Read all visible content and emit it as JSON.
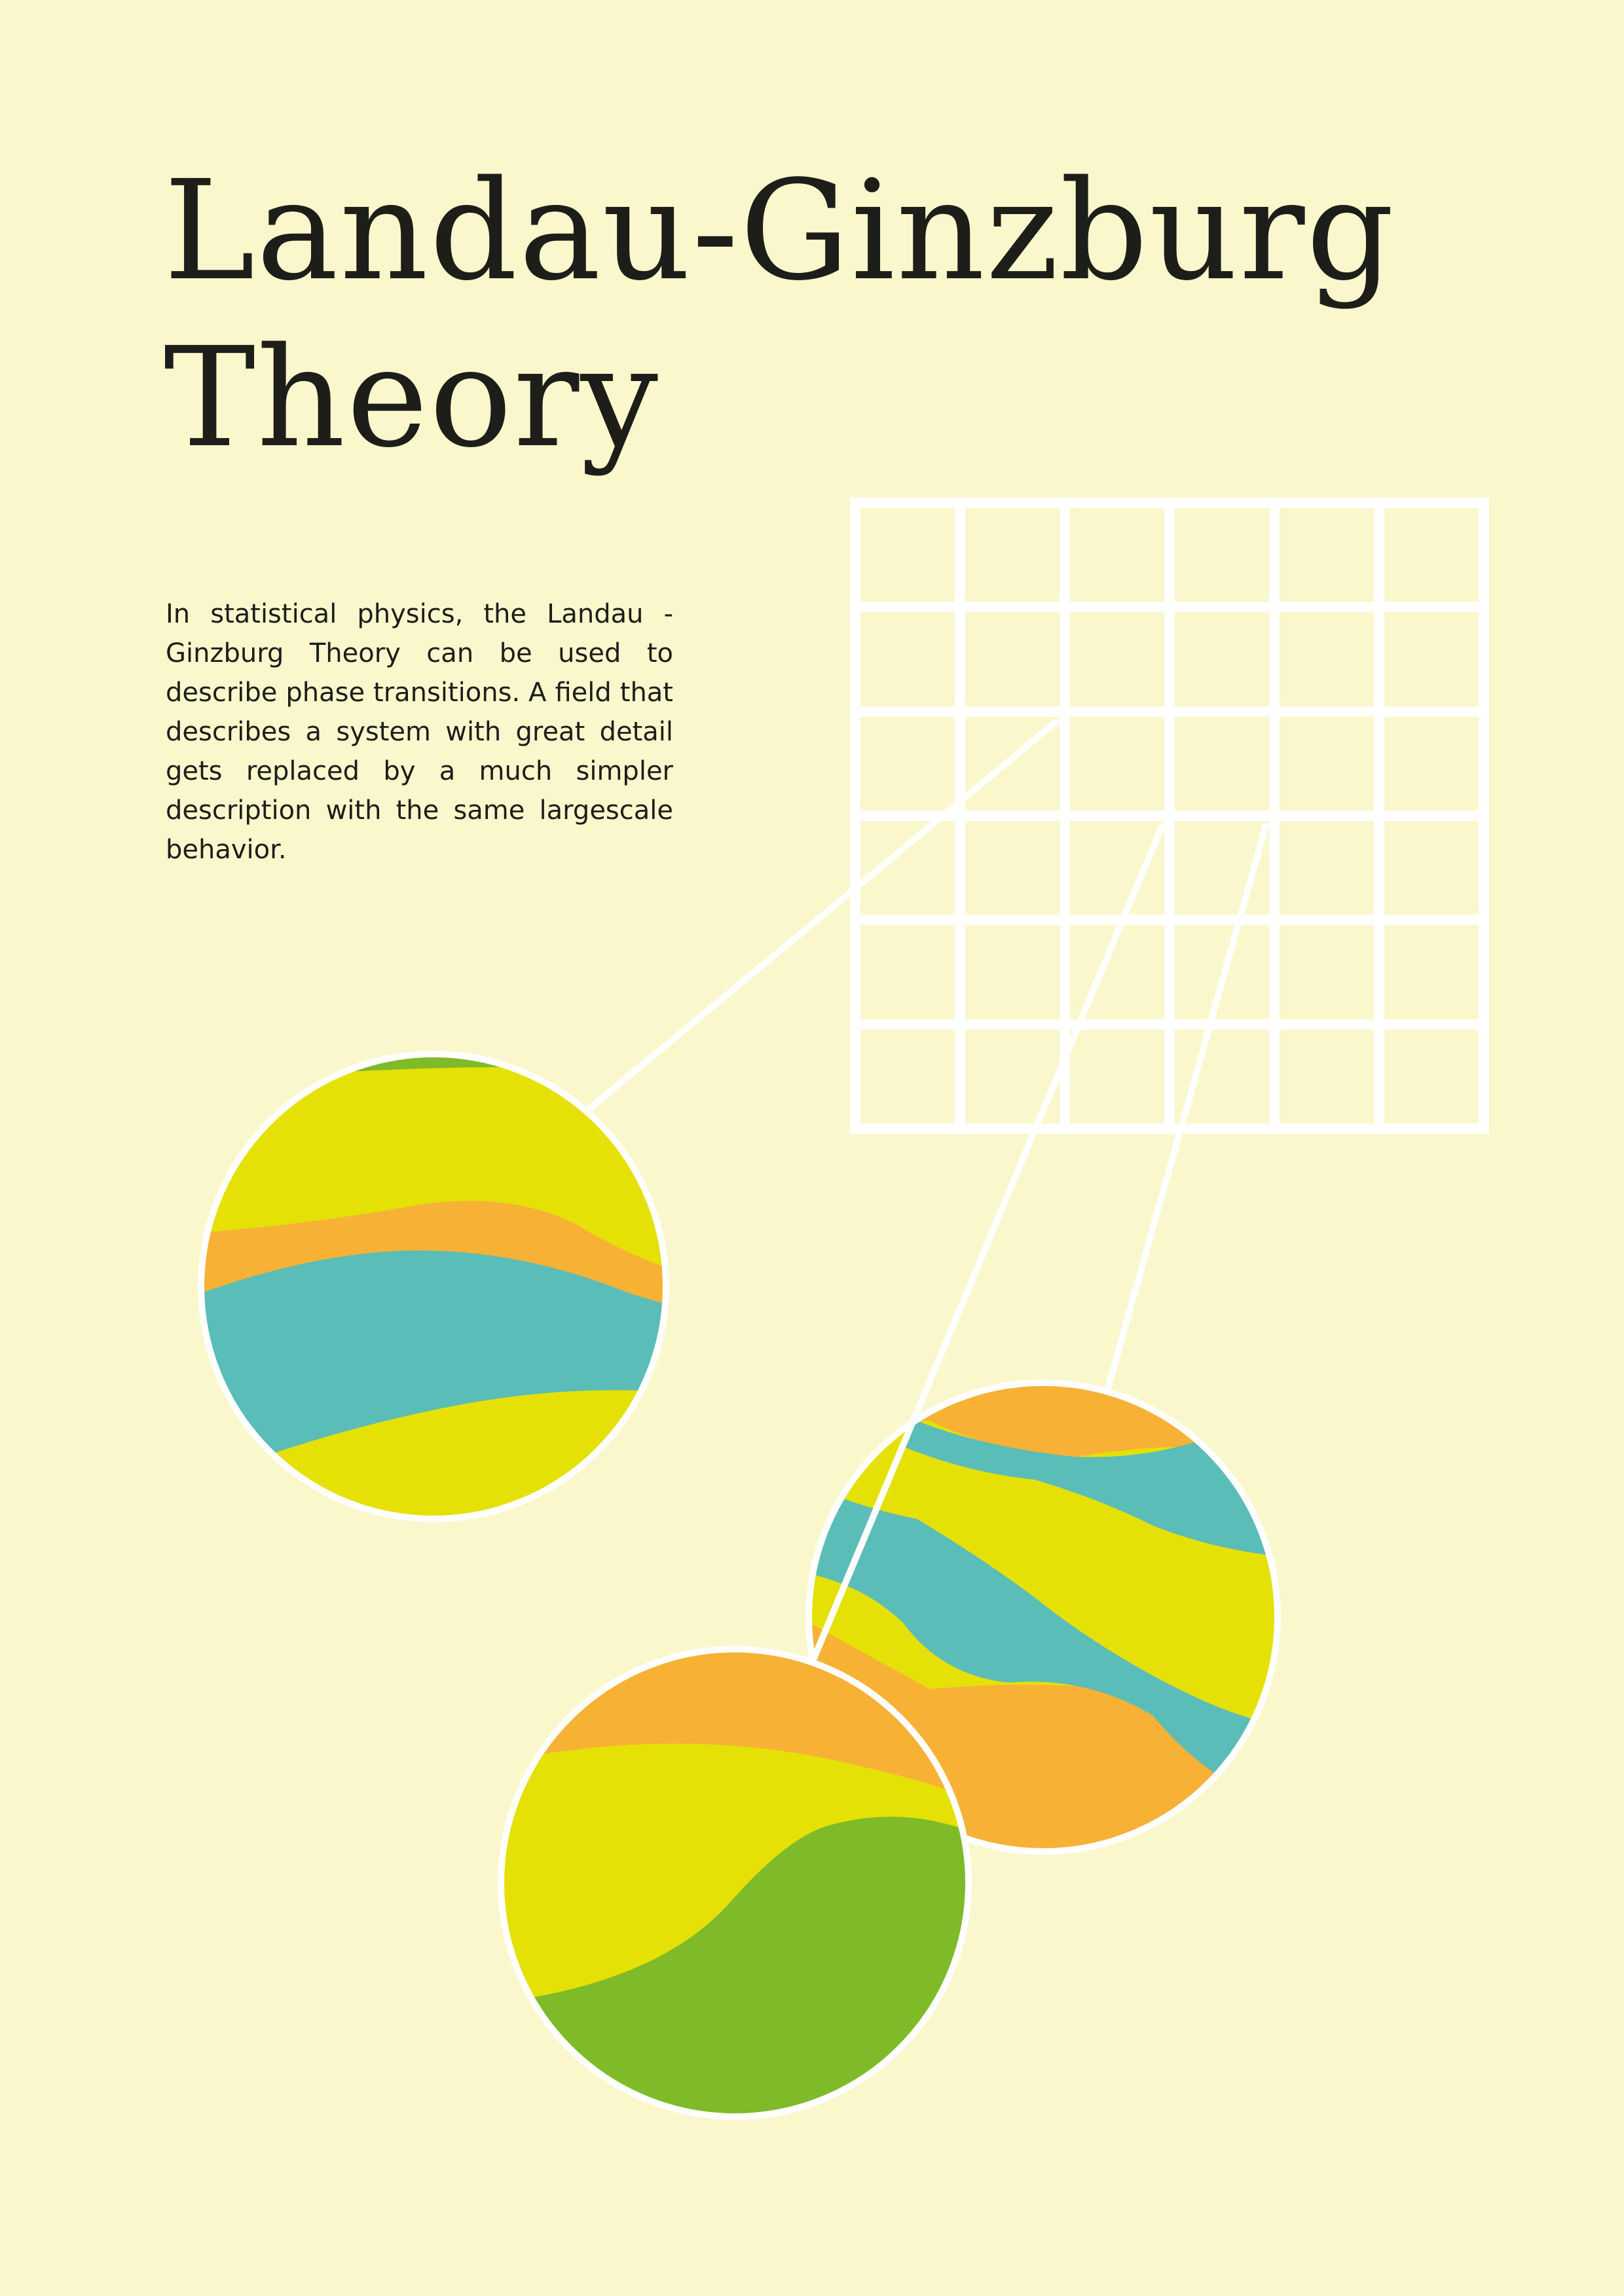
{
  "title": {
    "line1": "Landau-Ginzburg",
    "line2": "Theory"
  },
  "description": "In statistical physics, the Landau -Ginzburg Theory can be used to describe phase transitions. A field that describes a system with great detail gets replaced by a much simpler description with the same largescale behavior.",
  "colors": {
    "background": "#faf7cd",
    "text": "#1d1d19",
    "line": "#ffffff",
    "yellow": "#e5e107",
    "orange": "#f7b135",
    "teal": "#5bbdb7",
    "green": "#7fba28"
  },
  "illustration": {
    "grid": {
      "columns": 6,
      "rows": 6
    },
    "circles": [
      "circle-left",
      "circle-right",
      "circle-bottom"
    ]
  }
}
